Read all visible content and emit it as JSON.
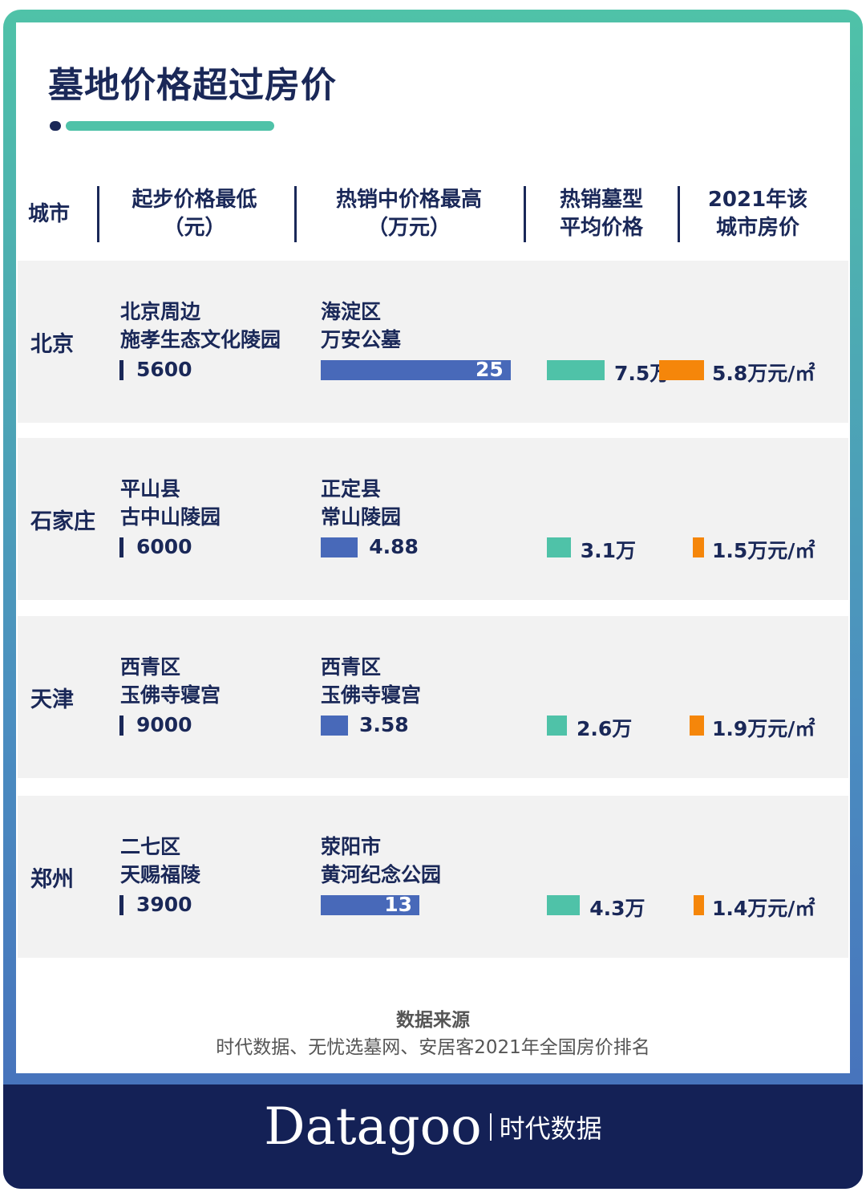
{
  "title": "墓地价格超过房价",
  "colors": {
    "navy": "#1a2858",
    "blue_bar": "#4869b9",
    "teal_bar": "#4fc2a8",
    "orange_bar": "#f5860a",
    "row_bg": "#f2f2f2"
  },
  "headers": [
    "城市",
    "起步价格最低\n（元）",
    "热销中价格最高\n（万元）",
    "热销墓型\n平均价格",
    "2021年该\n城市房价"
  ],
  "chart_data": {
    "type": "table",
    "columns": [
      "城市",
      "起步价格最低（元）",
      "热销中价格最高（万元）",
      "热销墓型平均价格",
      "2021年该城市房价"
    ],
    "rows": [
      {
        "city": "北京",
        "min_cemetery": [
          "北京周边",
          "施孝生态文化陵园"
        ],
        "min_price": 5600,
        "max_cemetery": [
          "海淀区",
          "万安公墓"
        ],
        "max_price": 25,
        "avg_price": 7.5,
        "avg_label": "7.5万",
        "house_price": 5.8,
        "house_label": "5.8万元/㎡"
      },
      {
        "city": "石家庄",
        "min_cemetery": [
          "平山县",
          "古中山陵园"
        ],
        "min_price": 6000,
        "max_cemetery": [
          "正定县",
          "常山陵园"
        ],
        "max_price": 4.88,
        "avg_price": 3.1,
        "avg_label": "3.1万",
        "house_price": 1.5,
        "house_label": "1.5万元/㎡"
      },
      {
        "city": "天津",
        "min_cemetery": [
          "西青区",
          "玉佛寺寝宫"
        ],
        "min_price": 9000,
        "max_cemetery": [
          "西青区",
          "玉佛寺寝宫"
        ],
        "max_price": 3.58,
        "avg_price": 2.6,
        "avg_label": "2.6万",
        "house_price": 1.9,
        "house_label": "1.9万元/㎡"
      },
      {
        "city": "郑州",
        "min_cemetery": [
          "二七区",
          "天赐福陵"
        ],
        "min_price": 3900,
        "max_cemetery": [
          "荥阳市",
          "黄河纪念公园"
        ],
        "max_price": 13,
        "avg_price": 4.3,
        "avg_label": "4.3万",
        "house_price": 1.4,
        "house_label": "1.4万元/㎡"
      }
    ]
  },
  "source": {
    "title": "数据来源",
    "text": "时代数据、无忧选墓网、安居客2021年全国房价排名"
  },
  "logo": {
    "en": "Datagoo",
    "cn": "时代数据"
  }
}
